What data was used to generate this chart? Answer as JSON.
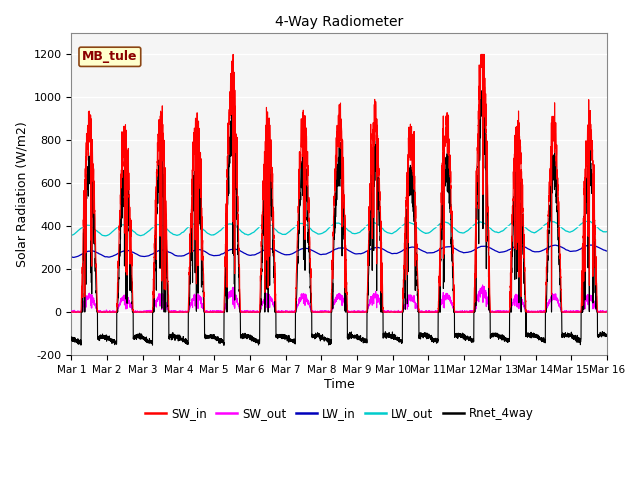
{
  "title": "4-Way Radiometer",
  "xlabel": "Time",
  "ylabel": "Solar Radiation (W/m2)",
  "ylim": [
    -200,
    1300
  ],
  "yticks": [
    -200,
    0,
    200,
    400,
    600,
    800,
    1000,
    1200
  ],
  "xtick_labels": [
    "Mar 1",
    "Mar 2",
    "Mar 3",
    "Mar 4",
    "Mar 5",
    "Mar 6",
    "Mar 7",
    "Mar 8",
    "Mar 9",
    "Mar 10",
    "Mar 11",
    "Mar 12",
    "Mar 13",
    "Mar 14",
    "Mar 15",
    "Mar 16"
  ],
  "annotation_text": "MB_tule",
  "colors": {
    "SW_in": "#ff0000",
    "SW_out": "#ff00ff",
    "LW_in": "#0000bb",
    "LW_out": "#00cccc",
    "Rnet_4way": "#000000"
  },
  "n_days": 15,
  "pts_per_day": 288,
  "figsize": [
    6.4,
    4.8
  ],
  "dpi": 100,
  "sw_peaks": [
    880,
    800,
    870,
    860,
    1060,
    860,
    870,
    880,
    890,
    800,
    870,
    1170,
    850,
    840,
    860
  ],
  "lw_in_base": 270,
  "lw_out_base": 380
}
